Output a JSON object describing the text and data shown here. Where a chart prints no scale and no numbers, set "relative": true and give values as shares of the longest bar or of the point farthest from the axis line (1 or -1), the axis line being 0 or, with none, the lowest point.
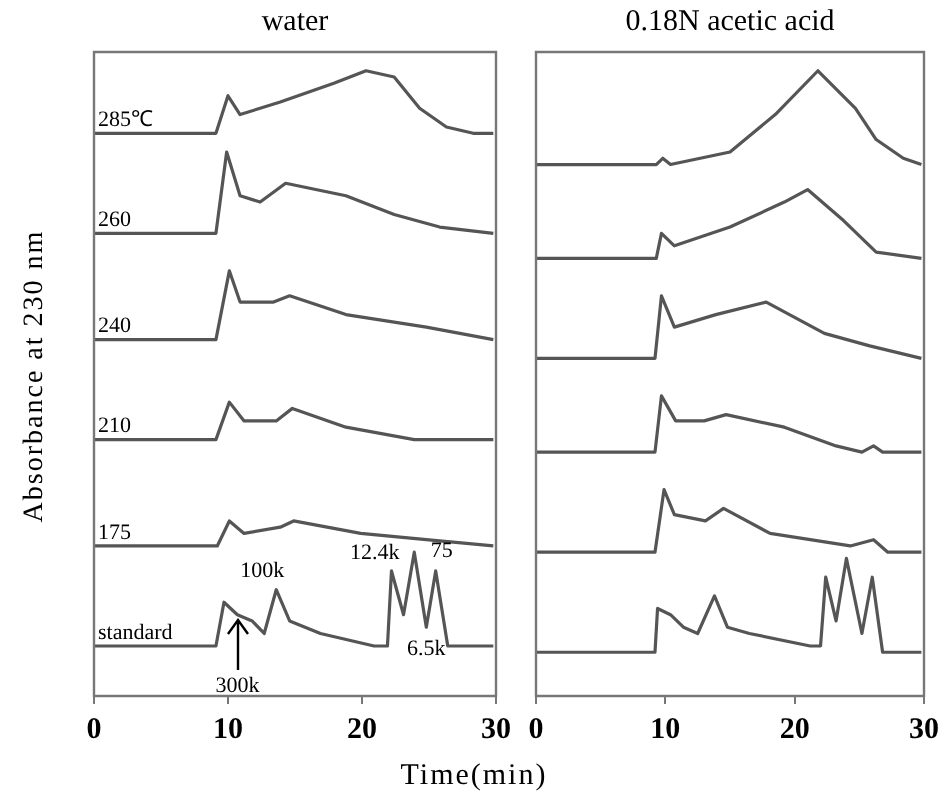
{
  "chart_data": [
    {
      "type": "line",
      "title": "water",
      "xlabel": "Time(min)",
      "ylabel": "Absorbance at 230 nm",
      "relative": true,
      "xlim": [
        0,
        30
      ],
      "xticks": [
        0,
        10,
        20,
        30
      ],
      "grid": false,
      "legend": false,
      "tick_labels": "x",
      "marker": "none",
      "line_style": "solid",
      "series": [
        {
          "name": "285℃",
          "color": "#555555",
          "x": [
            0,
            9.1,
            10.0,
            10.9,
            13.9,
            17.9,
            20.3,
            22.4,
            24.3,
            26.3,
            28.3,
            29.8
          ],
          "values": [
            0.9,
            0.9,
            0.96,
            0.93,
            0.95,
            0.98,
            1.0,
            0.99,
            0.94,
            0.91,
            0.9,
            0.9
          ]
        },
        {
          "name": "260",
          "color": "#555555",
          "x": [
            0,
            9.1,
            9.9,
            10.9,
            12.4,
            14.3,
            18.8,
            22.4,
            25.8,
            29.8
          ],
          "values": [
            0.74,
            0.74,
            0.87,
            0.8,
            0.79,
            0.82,
            0.8,
            0.77,
            0.75,
            0.74
          ]
        },
        {
          "name": "240",
          "color": "#555555",
          "x": [
            0,
            9.1,
            10.1,
            10.9,
            13.4,
            14.6,
            18.8,
            24.8,
            29.8
          ],
          "values": [
            0.57,
            0.57,
            0.68,
            0.63,
            0.63,
            0.64,
            0.61,
            0.59,
            0.57
          ]
        },
        {
          "name": "210",
          "color": "#555555",
          "x": [
            0,
            9.1,
            10.1,
            11.2,
            13.6,
            14.8,
            18.8,
            23.9,
            29.8
          ],
          "values": [
            0.41,
            0.41,
            0.47,
            0.44,
            0.44,
            0.46,
            0.43,
            0.41,
            0.41
          ]
        },
        {
          "name": "175",
          "color": "#555555",
          "x": [
            0,
            9.2,
            10.1,
            11.2,
            13.9,
            14.9,
            19.9,
            24.8,
            29.8
          ],
          "values": [
            0.24,
            0.24,
            0.28,
            0.26,
            0.27,
            0.28,
            0.26,
            0.25,
            0.24
          ]
        },
        {
          "name": "standard",
          "color": "#555555",
          "x": [
            0,
            9.1,
            9.7,
            10.7,
            11.8,
            12.7,
            13.6,
            14.6,
            16.9,
            20.9,
            21.9,
            22.2,
            23.1,
            23.9,
            24.8,
            25.5,
            26.4,
            29.8
          ],
          "values": [
            0.08,
            0.08,
            0.15,
            0.13,
            0.12,
            0.1,
            0.17,
            0.12,
            0.1,
            0.08,
            0.08,
            0.2,
            0.13,
            0.23,
            0.11,
            0.2,
            0.08,
            0.08
          ]
        }
      ],
      "annotations": [
        {
          "text": "300k",
          "x": 10.7,
          "y": 0.13
        },
        {
          "text": "100k",
          "x": 13.6,
          "y": 0.17
        },
        {
          "text": "12.4k",
          "x": 22.2,
          "y": 0.2
        },
        {
          "text": "6.5k",
          "x": 24.8,
          "y": 0.11
        },
        {
          "text": "75",
          "x": 25.5,
          "y": 0.2
        }
      ]
    },
    {
      "type": "line",
      "title": "0.18N acetic acid",
      "relative": true,
      "xlim": [
        0,
        30
      ],
      "xticks": [
        0,
        10,
        20,
        30
      ],
      "grid": false,
      "legend": false,
      "tick_labels": "x",
      "marker": "none",
      "line_style": "solid",
      "series": [
        {
          "color": "#555555",
          "x": [
            0,
            9.3,
            9.8,
            10.4,
            15.0,
            18.5,
            21.8,
            24.7,
            26.3,
            28.4,
            29.8
          ],
          "values": [
            0.85,
            0.85,
            0.86,
            0.85,
            0.87,
            0.93,
            1.0,
            0.94,
            0.89,
            0.86,
            0.85
          ]
        },
        {
          "color": "#555555",
          "x": [
            0,
            9.3,
            9.7,
            10.7,
            15.0,
            19.2,
            21.0,
            23.8,
            26.3,
            29.8
          ],
          "values": [
            0.7,
            0.7,
            0.74,
            0.72,
            0.75,
            0.79,
            0.81,
            0.76,
            0.71,
            0.7
          ]
        },
        {
          "color": "#555555",
          "x": [
            0,
            9.2,
            9.7,
            10.7,
            13.9,
            17.8,
            22.3,
            25.8,
            29.8
          ],
          "values": [
            0.54,
            0.54,
            0.64,
            0.59,
            0.61,
            0.63,
            0.58,
            0.56,
            0.54
          ]
        },
        {
          "color": "#555555",
          "x": [
            0,
            9.2,
            9.7,
            10.8,
            13.0,
            14.7,
            19.2,
            23.2,
            25.2,
            26.1,
            26.8,
            29.8
          ],
          "values": [
            0.39,
            0.39,
            0.48,
            0.44,
            0.44,
            0.45,
            0.43,
            0.4,
            0.39,
            0.4,
            0.39,
            0.39
          ]
        },
        {
          "color": "#555555",
          "x": [
            0,
            9.2,
            9.9,
            10.7,
            13.1,
            14.5,
            18.1,
            24.3,
            26.1,
            27.2,
            29.8
          ],
          "values": [
            0.23,
            0.23,
            0.33,
            0.29,
            0.28,
            0.3,
            0.26,
            0.24,
            0.25,
            0.23,
            0.23
          ]
        },
        {
          "color": "#555555",
          "x": [
            0,
            9.2,
            9.4,
            10.4,
            11.4,
            12.5,
            13.8,
            14.8,
            16.5,
            21.2,
            22.0,
            22.4,
            23.2,
            24.0,
            25.2,
            26.0,
            26.8,
            29.8
          ],
          "values": [
            0.07,
            0.07,
            0.14,
            0.13,
            0.11,
            0.1,
            0.16,
            0.11,
            0.1,
            0.08,
            0.08,
            0.19,
            0.12,
            0.22,
            0.1,
            0.19,
            0.07,
            0.07
          ]
        }
      ]
    }
  ]
}
